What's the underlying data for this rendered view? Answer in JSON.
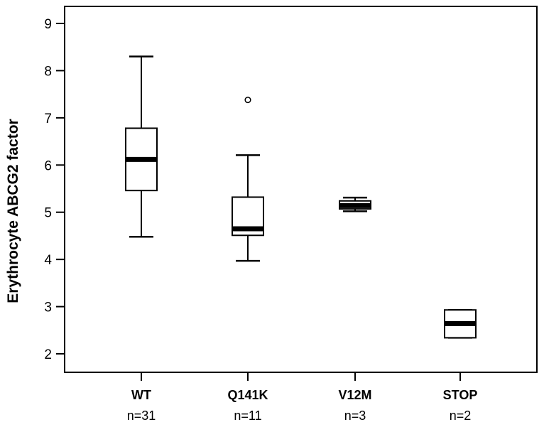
{
  "chart_data": {
    "type": "boxplot",
    "ylabel": "Erythrocyte ABCG2 factor",
    "xlabel": "",
    "ylim": [
      1.5,
      9.4
    ],
    "yticks": [
      2,
      3,
      4,
      5,
      6,
      7,
      8,
      9
    ],
    "grid": false,
    "groups": [
      {
        "label": "WT",
        "n_label": "n=31",
        "whisker_low": 4.48,
        "q1": 5.46,
        "median": 6.12,
        "q3": 6.78,
        "whisker_high": 8.3,
        "outliers": []
      },
      {
        "label": "Q141K",
        "n_label": "n=11",
        "whisker_low": 3.97,
        "q1": 4.51,
        "median": 4.65,
        "q3": 5.32,
        "whisker_high": 6.21,
        "outliers": [
          7.38
        ]
      },
      {
        "label": "V12M",
        "n_label": "n=3",
        "whisker_low": 5.02,
        "q1": 5.07,
        "median": 5.14,
        "q3": 5.24,
        "whisker_high": 5.31,
        "outliers": []
      },
      {
        "label": "STOP",
        "n_label": "n=2",
        "whisker_low": 2.34,
        "q1": 2.34,
        "median": 2.64,
        "q3": 2.93,
        "whisker_high": 2.93,
        "outliers": []
      }
    ],
    "colors": {
      "stroke": "#000000",
      "fill": "#ffffff"
    }
  }
}
